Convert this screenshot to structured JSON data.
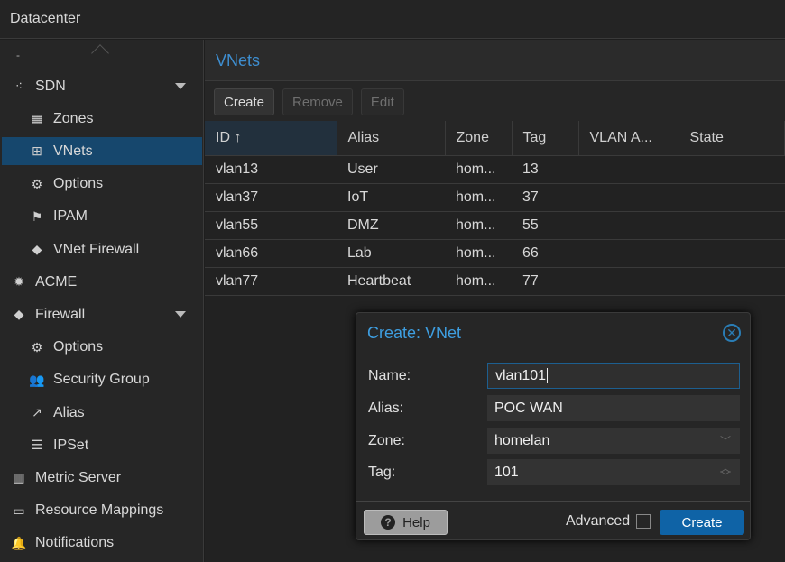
{
  "header": {
    "title": "Datacenter"
  },
  "sidebar": {
    "scroll_marker": "-",
    "items": [
      {
        "label": "SDN",
        "icon": "sdn-icon",
        "glyph": "⁖",
        "level": 1,
        "expander": true
      },
      {
        "label": "Zones",
        "icon": "grid-icon",
        "glyph": "▦",
        "level": 2
      },
      {
        "label": "VNets",
        "icon": "network-icon",
        "glyph": "⊞",
        "level": 2,
        "selected": true
      },
      {
        "label": "Options",
        "icon": "gear-icon",
        "glyph": "⚙",
        "level": 2
      },
      {
        "label": "IPAM",
        "icon": "signpost-icon",
        "glyph": "⚑",
        "level": 2
      },
      {
        "label": "VNet Firewall",
        "icon": "shield-icon",
        "glyph": "◆",
        "level": 2
      },
      {
        "label": "ACME",
        "icon": "certificate-icon",
        "glyph": "✹",
        "level": 1
      },
      {
        "label": "Firewall",
        "icon": "shield-icon",
        "glyph": "◆",
        "level": 1,
        "expander": true
      },
      {
        "label": "Options",
        "icon": "gear-icon",
        "glyph": "⚙",
        "level": 2
      },
      {
        "label": "Security Group",
        "icon": "users-icon",
        "glyph": "👥",
        "level": 2
      },
      {
        "label": "Alias",
        "icon": "external-link-icon",
        "glyph": "↗",
        "level": 2
      },
      {
        "label": "IPSet",
        "icon": "list-icon",
        "glyph": "☰",
        "level": 2
      },
      {
        "label": "Metric Server",
        "icon": "bar-chart-icon",
        "glyph": "▥",
        "level": 1
      },
      {
        "label": "Resource Mappings",
        "icon": "folder-icon",
        "glyph": "▭",
        "level": 1
      },
      {
        "label": "Notifications",
        "icon": "bell-icon",
        "glyph": "🔔",
        "level": 1
      }
    ]
  },
  "main": {
    "title": "VNets",
    "toolbar": {
      "create": "Create",
      "remove": "Remove",
      "edit": "Edit"
    },
    "columns": [
      "ID ↑",
      "Alias",
      "Zone",
      "Tag",
      "VLAN A...",
      "State"
    ],
    "rows": [
      [
        "vlan13",
        "User",
        "hom...",
        "13",
        "",
        ""
      ],
      [
        "vlan37",
        "IoT",
        "hom...",
        "37",
        "",
        ""
      ],
      [
        "vlan55",
        "DMZ",
        "hom...",
        "55",
        "",
        ""
      ],
      [
        "vlan66",
        "Lab",
        "hom...",
        "66",
        "",
        ""
      ],
      [
        "vlan77",
        "Heartbeat",
        "hom...",
        "77",
        "",
        ""
      ]
    ]
  },
  "dialog": {
    "title": "Create: VNet",
    "fields": {
      "name_label": "Name:",
      "name": "vlan101",
      "alias_label": "Alias:",
      "alias": "POC WAN",
      "zone_label": "Zone:",
      "zone": "homelan",
      "tag_label": "Tag:",
      "tag": "101"
    },
    "help": "Help",
    "advanced": "Advanced",
    "advanced_checked": false,
    "create": "Create"
  }
}
